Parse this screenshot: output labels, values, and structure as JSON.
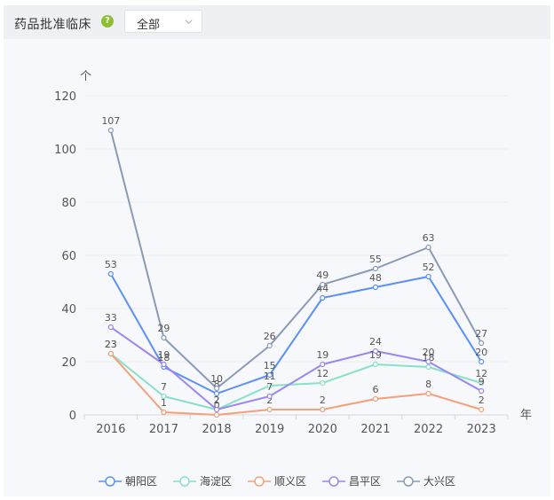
{
  "header": {
    "title": "药品批准临床",
    "help_icon": "question-circle-icon",
    "select_value": "全部"
  },
  "chart_data": {
    "type": "line",
    "ylabel": "个",
    "xlabel": "年",
    "ylim": [
      0,
      120
    ],
    "yticks": [
      "0",
      "20",
      "40",
      "60",
      "80",
      "100",
      "120"
    ],
    "categories": [
      "2016",
      "2017",
      "2018",
      "2019",
      "2020",
      "2021",
      "2022",
      "2023"
    ],
    "grid": true,
    "legend_position": "bottom",
    "series": [
      {
        "name": "朝阳区",
        "color": "#5b8ff9",
        "values": [
          53,
          18,
          8,
          15,
          44,
          48,
          52,
          20
        ]
      },
      {
        "name": "海淀区",
        "color": "#88e0c8",
        "values": [
          23,
          7,
          2,
          11,
          12,
          19,
          18,
          12
        ]
      },
      {
        "name": "顺义区",
        "color": "#f4a07a",
        "values": [
          23,
          1,
          0,
          2,
          2,
          6,
          8,
          2
        ]
      },
      {
        "name": "昌平区",
        "color": "#9a88f0",
        "values": [
          33,
          19,
          2,
          7,
          19,
          24,
          20,
          9
        ]
      },
      {
        "name": "大兴区",
        "color": "#8a9ab6",
        "values": [
          107,
          29,
          10,
          26,
          49,
          55,
          63,
          27
        ]
      }
    ]
  }
}
